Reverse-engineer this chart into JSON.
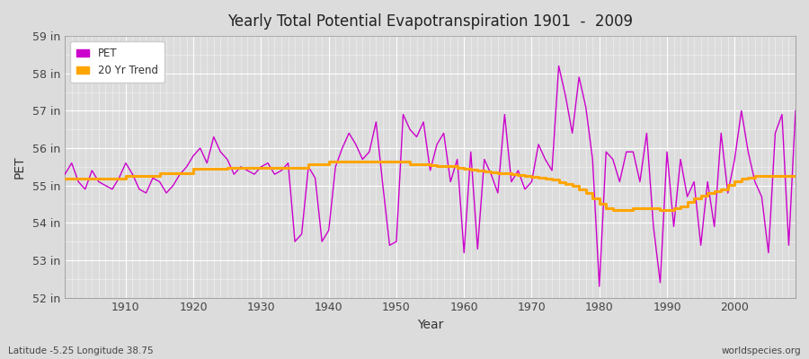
{
  "title": "Yearly Total Potential Evapotranspiration 1901  -  2009",
  "ylabel": "PET",
  "xlabel": "Year",
  "subtitle_left": "Latitude -5.25 Longitude 38.75",
  "subtitle_right": "worldspecies.org",
  "pet_color": "#CC00CC",
  "trend_color": "#FFA500",
  "bg_color": "#DCDCDC",
  "plot_bg_color": "#DCDCDC",
  "ylim_min": 52,
  "ylim_max": 59,
  "xlim_min": 1901,
  "xlim_max": 2009,
  "yticks": [
    52,
    53,
    54,
    55,
    56,
    57,
    58,
    59
  ],
  "ytick_labels": [
    "52 in",
    "53 in",
    "54 in",
    "55 in",
    "56 in",
    "57 in",
    "58 in",
    "59 in"
  ],
  "years": [
    1901,
    1902,
    1903,
    1904,
    1905,
    1906,
    1907,
    1908,
    1909,
    1910,
    1911,
    1912,
    1913,
    1914,
    1915,
    1916,
    1917,
    1918,
    1919,
    1920,
    1921,
    1922,
    1923,
    1924,
    1925,
    1926,
    1927,
    1928,
    1929,
    1930,
    1931,
    1932,
    1933,
    1934,
    1935,
    1936,
    1937,
    1938,
    1939,
    1940,
    1941,
    1942,
    1943,
    1944,
    1945,
    1946,
    1947,
    1948,
    1949,
    1950,
    1951,
    1952,
    1953,
    1954,
    1955,
    1956,
    1957,
    1958,
    1959,
    1960,
    1961,
    1962,
    1963,
    1964,
    1965,
    1966,
    1967,
    1968,
    1969,
    1970,
    1971,
    1972,
    1973,
    1974,
    1975,
    1976,
    1977,
    1978,
    1979,
    1980,
    1981,
    1982,
    1983,
    1984,
    1985,
    1986,
    1987,
    1988,
    1989,
    1990,
    1991,
    1992,
    1993,
    1994,
    1995,
    1996,
    1997,
    1998,
    1999,
    2000,
    2001,
    2002,
    2003,
    2004,
    2005,
    2006,
    2007,
    2008,
    2009
  ],
  "pet": [
    55.3,
    55.6,
    55.1,
    54.9,
    55.4,
    55.1,
    55.0,
    54.9,
    55.2,
    55.6,
    55.3,
    54.9,
    54.8,
    55.2,
    55.1,
    54.8,
    55.0,
    55.3,
    55.5,
    55.8,
    56.0,
    55.6,
    56.3,
    55.9,
    55.7,
    55.3,
    55.5,
    55.4,
    55.3,
    55.5,
    55.6,
    55.3,
    55.4,
    55.6,
    53.5,
    53.7,
    55.5,
    55.2,
    53.5,
    53.8,
    55.5,
    56.0,
    56.4,
    56.1,
    55.7,
    55.9,
    56.7,
    55.0,
    53.4,
    53.5,
    56.9,
    56.5,
    56.3,
    56.7,
    55.4,
    56.1,
    56.4,
    55.1,
    55.7,
    53.2,
    55.9,
    53.3,
    55.7,
    55.3,
    54.8,
    56.9,
    55.1,
    55.4,
    54.9,
    55.1,
    56.1,
    55.7,
    55.4,
    58.2,
    57.4,
    56.4,
    57.9,
    57.1,
    55.7,
    52.3,
    55.9,
    55.7,
    55.1,
    55.9,
    55.9,
    55.1,
    56.4,
    53.9,
    52.4,
    55.9,
    53.9,
    55.7,
    54.7,
    55.1,
    53.4,
    55.1,
    53.9,
    56.4,
    54.8,
    55.7,
    57.0,
    55.9,
    55.1,
    54.7,
    53.2,
    56.4,
    56.9,
    53.4,
    57.0
  ],
  "trend": [
    55.18,
    55.18,
    55.18,
    55.18,
    55.18,
    55.18,
    55.18,
    55.18,
    55.18,
    55.25,
    55.25,
    55.25,
    55.25,
    55.25,
    55.32,
    55.32,
    55.32,
    55.32,
    55.32,
    55.45,
    55.45,
    55.45,
    55.45,
    55.45,
    55.47,
    55.47,
    55.47,
    55.47,
    55.47,
    55.47,
    55.47,
    55.47,
    55.47,
    55.47,
    55.47,
    55.47,
    55.57,
    55.57,
    55.57,
    55.65,
    55.65,
    55.65,
    55.65,
    55.65,
    55.65,
    55.65,
    55.65,
    55.65,
    55.65,
    55.65,
    55.65,
    55.58,
    55.58,
    55.58,
    55.55,
    55.52,
    55.52,
    55.52,
    55.48,
    55.45,
    55.42,
    55.4,
    55.37,
    55.35,
    55.32,
    55.32,
    55.3,
    55.28,
    55.25,
    55.23,
    55.2,
    55.18,
    55.15,
    55.1,
    55.05,
    55.0,
    54.9,
    54.8,
    54.65,
    54.5,
    54.4,
    54.35,
    54.35,
    54.35,
    54.38,
    54.38,
    54.38,
    54.38,
    54.35,
    54.35,
    54.38,
    54.45,
    54.55,
    54.65,
    54.72,
    54.8,
    54.85,
    54.9,
    55.02,
    55.12,
    55.18,
    55.22,
    55.25,
    55.25,
    55.25,
    55.25,
    55.25,
    55.25,
    55.25
  ]
}
